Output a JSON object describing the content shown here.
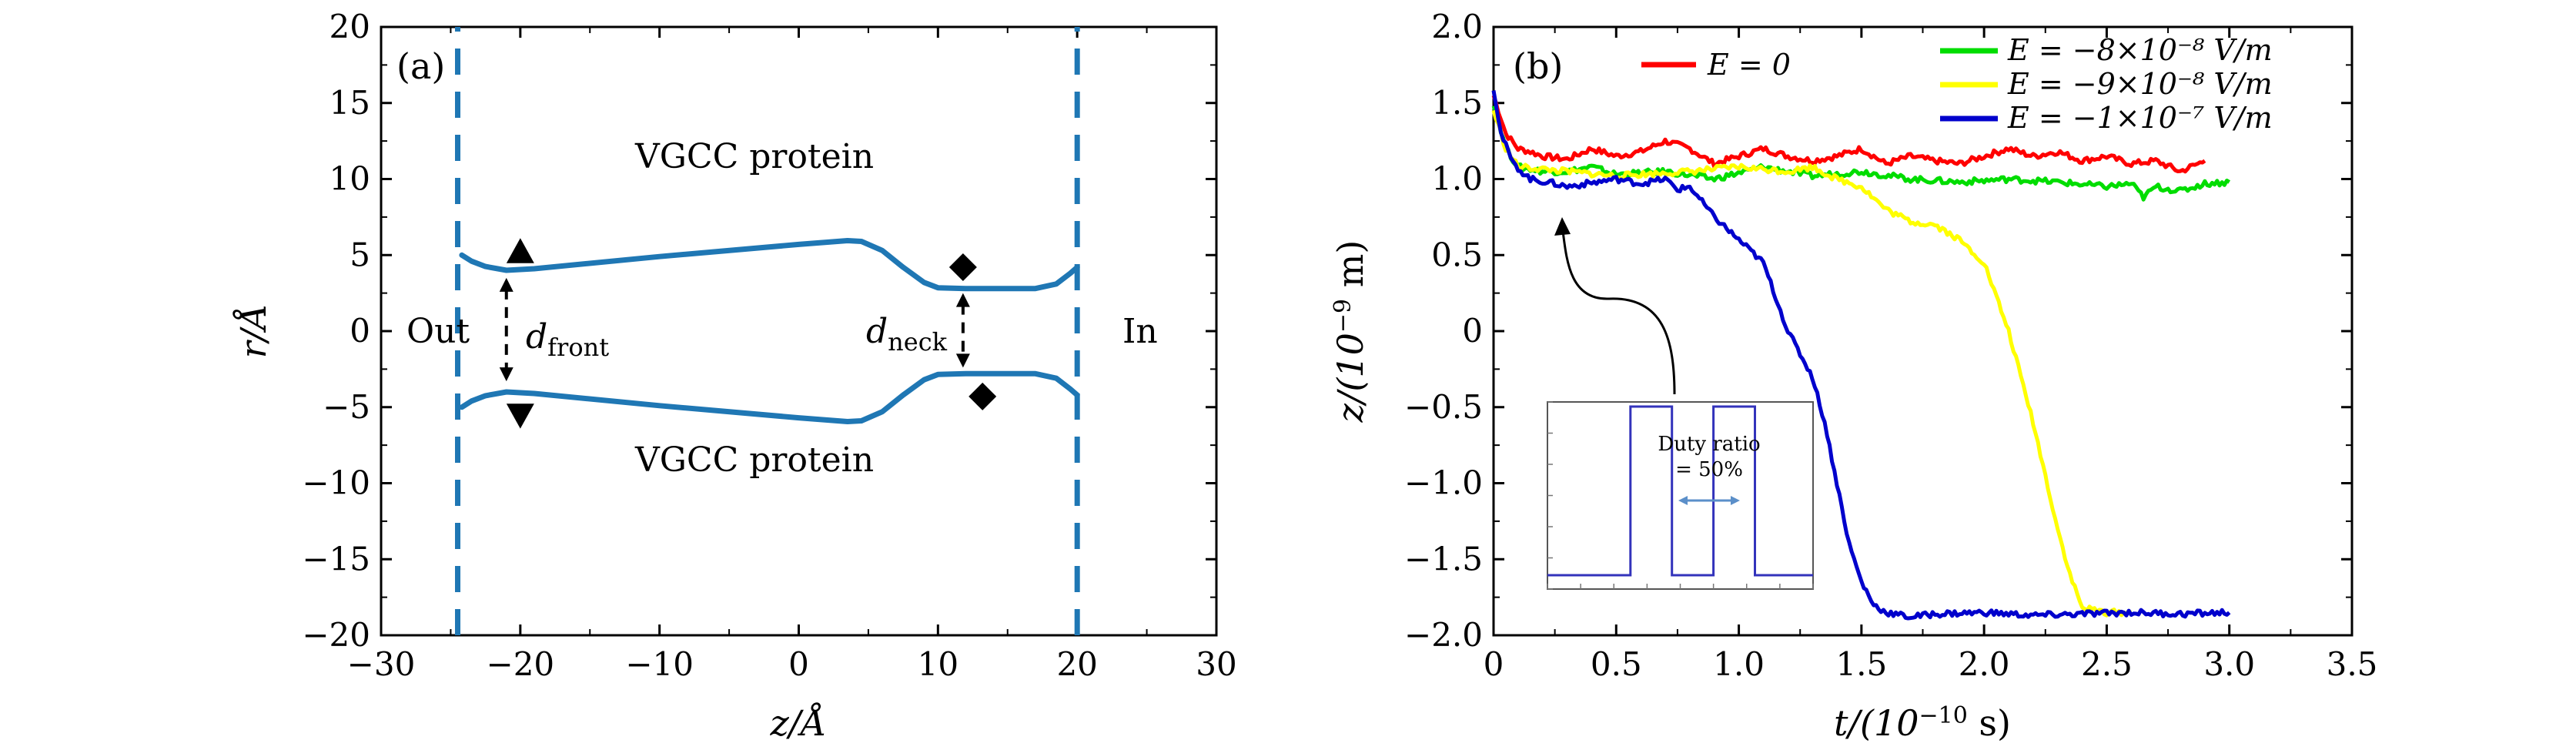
{
  "chart_data": [
    {
      "panel": "(a)",
      "type": "line",
      "xlabel": "z/Å",
      "ylabel": "r/Å",
      "xlim": [
        -30,
        30
      ],
      "ylim": [
        -20,
        20
      ],
      "xticks": [
        -30,
        -20,
        -10,
        0,
        10,
        20,
        30
      ],
      "yticks": [
        -20,
        -15,
        -10,
        -5,
        0,
        5,
        10,
        15,
        20
      ],
      "grid": false,
      "series": [
        {
          "key": "upper_wall",
          "color": "#1f77b4",
          "x": [
            -24.2,
            -23.5,
            -22.5,
            -21.0,
            -19.0,
            -10.0,
            0.0,
            3.5,
            4.5,
            6.0,
            7.5,
            9.0,
            10.0,
            12.0,
            17.0,
            18.5,
            19.5,
            20.0
          ],
          "y": [
            5.0,
            4.6,
            4.25,
            4.0,
            4.1,
            4.9,
            5.7,
            5.95,
            5.9,
            5.3,
            4.2,
            3.2,
            2.85,
            2.8,
            2.8,
            3.1,
            3.8,
            4.2
          ]
        },
        {
          "key": "lower_wall",
          "color": "#1f77b4",
          "x": [
            -24.2,
            -23.5,
            -22.5,
            -21.0,
            -19.0,
            -10.0,
            0.0,
            3.5,
            4.5,
            6.0,
            7.5,
            9.0,
            10.0,
            12.0,
            17.0,
            18.5,
            19.5,
            20.0
          ],
          "y": [
            -5.0,
            -4.6,
            -4.25,
            -4.0,
            -4.1,
            -4.9,
            -5.7,
            -5.95,
            -5.9,
            -5.3,
            -4.2,
            -3.2,
            -2.85,
            -2.8,
            -2.8,
            -3.1,
            -3.8,
            -4.2
          ]
        },
        {
          "key": "left_boundary",
          "color": "#1f77b4",
          "style": "dashed",
          "x": [
            -24.5,
            -24.5
          ],
          "y": [
            -20,
            20
          ]
        },
        {
          "key": "right_boundary",
          "color": "#1f77b4",
          "style": "dashed",
          "x": [
            20.0,
            20.0
          ],
          "y": [
            -20,
            20
          ]
        }
      ],
      "markers": [
        {
          "shape": "triangle-up",
          "x": -20.0,
          "y": 5.2
        },
        {
          "shape": "triangle-down",
          "x": -20.0,
          "y": -5.5
        },
        {
          "shape": "diamond",
          "x": 11.8,
          "y": 4.2
        },
        {
          "shape": "diamond",
          "x": 13.2,
          "y": -4.3
        }
      ],
      "arrows": [
        {
          "label": "d_front",
          "x": -21.0,
          "y1": 3.5,
          "y2": -3.3
        },
        {
          "label": "d_neck",
          "x": 11.8,
          "y1": 2.5,
          "y2": -2.4
        }
      ],
      "annotations": [
        {
          "text": "VGCC protein",
          "x": -2.0,
          "y": 11.5
        },
        {
          "text": "VGCC protein",
          "x": -2.0,
          "y": -8.5
        },
        {
          "text": "Out",
          "x": -26.5,
          "y": 0
        },
        {
          "text": "In",
          "x": 24.5,
          "y": 0
        },
        {
          "text": "d",
          "sub": "front",
          "x": -18.0,
          "y": -0.5
        },
        {
          "text": "d",
          "sub": "neck",
          "x": 7.0,
          "y": 0
        }
      ]
    },
    {
      "panel": "(b)",
      "type": "line",
      "xlabel": "t/(10",
      "xlabel_sup": "−10",
      "xlabel_unit": " s)",
      "ylabel": "z/(10",
      "ylabel_sup": "−9",
      "ylabel_unit": " m)",
      "xlim": [
        0,
        3.5
      ],
      "ylim": [
        -2.0,
        2.0
      ],
      "xticks": [
        0,
        0.5,
        1.0,
        1.5,
        2.0,
        2.5,
        3.0,
        3.5
      ],
      "xtick_labels": [
        "0",
        "0.5",
        "1.0",
        "1.5",
        "2.0",
        "2.5",
        "3.0",
        "3.5"
      ],
      "yticks": [
        -2.0,
        -1.5,
        -1.0,
        -0.5,
        0,
        0.5,
        1.0,
        1.5,
        2.0
      ],
      "ytick_labels": [
        "−2.0",
        "−1.5",
        "−1.0",
        "−0.5",
        "0",
        "0.5",
        "1.0",
        "1.5",
        "2.0"
      ],
      "grid": false,
      "legend_placement": "top-right",
      "series": [
        {
          "name": "E = 0",
          "color": "#ff0000",
          "x": [
            0,
            0.05,
            0.1,
            0.15,
            0.2,
            0.3,
            0.4,
            0.5,
            0.6,
            0.7,
            0.8,
            0.9,
            1.0,
            1.1,
            1.2,
            1.3,
            1.4,
            1.5,
            1.6,
            1.7,
            1.8,
            1.9,
            2.0,
            2.1,
            2.2,
            2.3,
            2.4,
            2.5,
            2.6,
            2.7,
            2.8,
            2.9
          ],
          "y": [
            1.55,
            1.3,
            1.2,
            1.18,
            1.15,
            1.13,
            1.2,
            1.15,
            1.18,
            1.25,
            1.2,
            1.1,
            1.15,
            1.2,
            1.15,
            1.12,
            1.15,
            1.2,
            1.1,
            1.15,
            1.12,
            1.1,
            1.15,
            1.2,
            1.15,
            1.18,
            1.12,
            1.15,
            1.1,
            1.12,
            1.05,
            1.12
          ]
        },
        {
          "name": "E = −8×10⁻⁸ V/m",
          "color": "#00dd00",
          "x": [
            0,
            0.05,
            0.1,
            0.2,
            0.3,
            0.4,
            0.5,
            0.7,
            0.9,
            1.1,
            1.3,
            1.5,
            1.7,
            1.9,
            2.1,
            2.3,
            2.5,
            2.6,
            2.65,
            2.7,
            2.8,
            2.9,
            3.0
          ],
          "y": [
            1.5,
            1.2,
            1.08,
            1.05,
            1.05,
            1.08,
            1.03,
            1.05,
            1.0,
            1.08,
            1.02,
            1.05,
            1.0,
            0.98,
            1.0,
            0.98,
            0.95,
            0.97,
            0.88,
            0.95,
            0.92,
            0.97,
            0.98
          ]
        },
        {
          "name": "E = −9×10⁻⁸ V/m",
          "color": "#ffff00",
          "x": [
            0,
            0.05,
            0.1,
            0.3,
            0.5,
            0.8,
            1.0,
            1.2,
            1.3,
            1.4,
            1.5,
            1.6,
            1.7,
            1.8,
            1.9,
            2.0,
            2.1,
            2.2,
            2.3,
            2.35,
            2.4,
            2.5,
            2.6
          ],
          "y": [
            1.45,
            1.2,
            1.08,
            1.05,
            1.02,
            1.05,
            1.08,
            1.05,
            1.08,
            1.0,
            0.95,
            0.8,
            0.72,
            0.7,
            0.6,
            0.45,
            0.0,
            -0.6,
            -1.3,
            -1.6,
            -1.82,
            -1.85,
            -1.85
          ]
        },
        {
          "name": "E = −1×10⁻⁷ V/m",
          "color": "#0000cc",
          "x": [
            0,
            0.03,
            0.08,
            0.15,
            0.25,
            0.3,
            0.5,
            0.6,
            0.7,
            0.75,
            0.8,
            0.9,
            1.0,
            1.1,
            1.2,
            1.3,
            1.35,
            1.4,
            1.45,
            1.5,
            1.55,
            1.6,
            1.7,
            1.8,
            2.0,
            2.2,
            2.4,
            2.6,
            2.8,
            3.0
          ],
          "y": [
            1.6,
            1.3,
            1.1,
            1.0,
            0.97,
            0.95,
            1.0,
            0.97,
            1.0,
            0.93,
            0.95,
            0.75,
            0.6,
            0.45,
            0.0,
            -0.3,
            -0.6,
            -1.0,
            -1.4,
            -1.65,
            -1.8,
            -1.85,
            -1.88,
            -1.86,
            -1.85,
            -1.87,
            -1.86,
            -1.85,
            -1.86,
            -1.85
          ]
        }
      ],
      "inset": {
        "type": "line",
        "text_line1": "Duty ratio",
        "text_line2": "= 50%",
        "square_wave_x": [
          0.0,
          0.5,
          0.5,
          0.75,
          0.75,
          1.0,
          1.0,
          1.25,
          1.25,
          1.6
        ],
        "square_wave_y": [
          0,
          0,
          1,
          1,
          0,
          0,
          1,
          1,
          0,
          0
        ],
        "color": "#3333bb"
      },
      "annotations": [
        {
          "text": "(b)",
          "x": 0.15,
          "y": 1.75
        }
      ]
    }
  ],
  "panel_a": {
    "label": "(a)",
    "protein_top": "VGCC protein",
    "protein_bottom": "VGCC protein",
    "out_label": "Out",
    "in_label": "In",
    "d_symbol": "d",
    "front_sub": "front",
    "neck_sub": "neck",
    "ylabel": "r/Å",
    "xlabel": "z/Å"
  },
  "panel_b": {
    "label": "(b)",
    "legend": [
      {
        "text": "E = 0",
        "color": "#ff0000"
      },
      {
        "text": "E = −8×10⁻⁸ V/m",
        "color": "#00dd00"
      },
      {
        "text": "E = −9×10⁻⁸ V/m",
        "color": "#ffff00"
      },
      {
        "text": "E = −1×10⁻⁷ V/m",
        "color": "#0000cc"
      }
    ],
    "ylabel": "z/(10",
    "ylabel_sup": "−9",
    "ylabel_unit": " m)",
    "xlabel": "t/(10",
    "xlabel_sup": "−10",
    "xlabel_unit": " s)",
    "inset_line1": "Duty ratio",
    "inset_line2": "= 50%"
  },
  "panel_a_ticks": {
    "x": [
      "−30",
      "−20",
      "−10",
      "0",
      "10",
      "20",
      "30"
    ],
    "y": [
      "−20",
      "−15",
      "−10",
      "−5",
      "0",
      "5",
      "10",
      "15",
      "20"
    ]
  }
}
